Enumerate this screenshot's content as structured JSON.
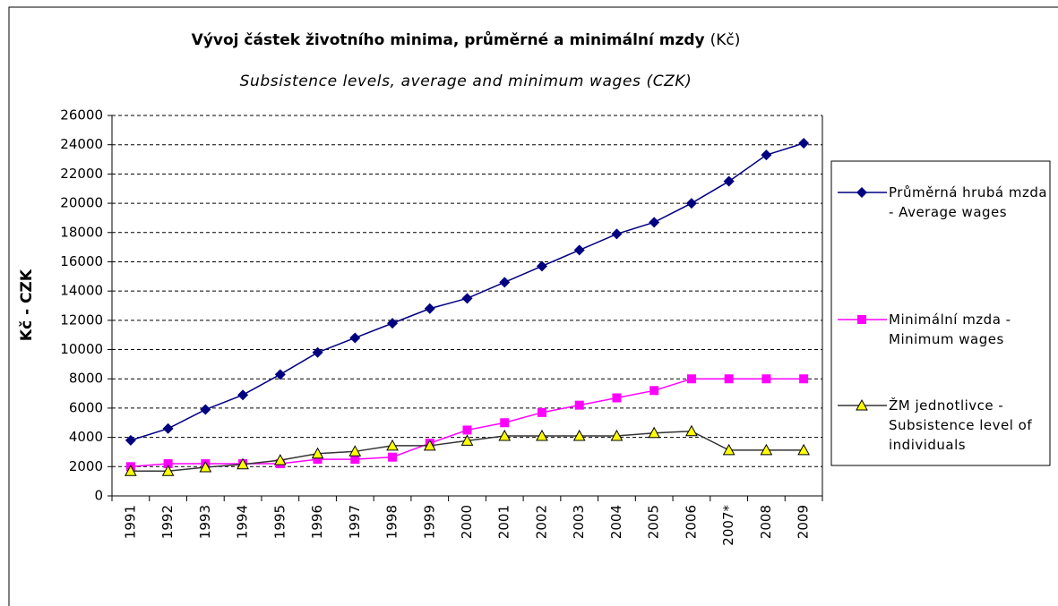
{
  "chart_data": {
    "type": "line",
    "title": "Vývoj částek životního minima, průměrné a minimální mzdy",
    "title_unit": "(Kč)",
    "subtitle": "Subsistence levels, average and minimum wages  (CZK)",
    "y_label": "Kč - CZK",
    "categories": [
      "1991",
      "1992",
      "1993",
      "1994",
      "1995",
      "1996",
      "1997",
      "1998",
      "1999",
      "2000",
      "2001",
      "2002",
      "2003",
      "2004",
      "2005",
      "2006",
      "2007*",
      "2008",
      "2009"
    ],
    "series": [
      {
        "name": "Průměrná hrubá mzda - Average wages",
        "color": "#000080",
        "marker": "diamond",
        "marker_color": "#000080",
        "values": [
          3800,
          4600,
          5900,
          6900,
          8300,
          9800,
          10800,
          11800,
          12800,
          13500,
          14600,
          15700,
          16800,
          17900,
          18700,
          20000,
          21500,
          23300,
          24100
        ]
      },
      {
        "name": "Minimální mzda - Minimum wages",
        "color": "#FF00FF",
        "marker": "square",
        "marker_color": "#FF00FF",
        "values": [
          2000,
          2200,
          2200,
          2200,
          2200,
          2500,
          2500,
          2650,
          3600,
          4500,
          5000,
          5700,
          6200,
          6700,
          7200,
          8000,
          8000,
          8000,
          8000
        ]
      },
      {
        "name": "ŽM jednotlivce - Subsistence level of individuals",
        "color": "#333333",
        "marker": "triangle",
        "marker_color": "#FFFF00",
        "values": [
          1700,
          1700,
          1960,
          2160,
          2440,
          2890,
          3040,
          3430,
          3430,
          3770,
          4100,
          4100,
          4100,
          4100,
          4300,
          4420,
          3126,
          3126,
          3126
        ]
      }
    ],
    "ylim": [
      0,
      26000
    ],
    "yticks": [
      0,
      2000,
      4000,
      6000,
      8000,
      10000,
      12000,
      14000,
      16000,
      18000,
      20000,
      22000,
      24000,
      26000
    ],
    "grid": true,
    "legend": "right"
  }
}
